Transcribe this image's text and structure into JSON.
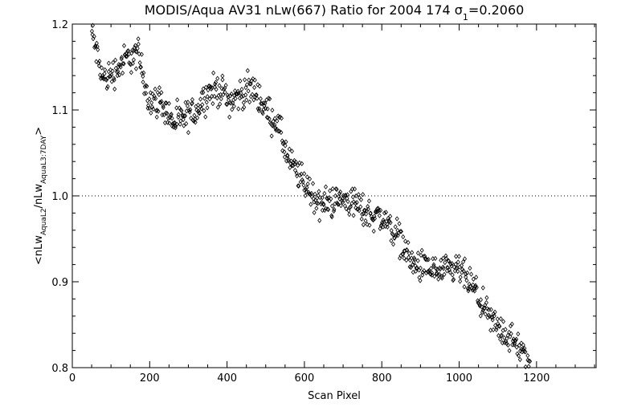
{
  "chart_data": {
    "type": "scatter",
    "title": "MODIS/Aqua AV31 nLw(667) Ratio for 2004 174 σ1=0.2060",
    "title_parts": {
      "main": "MODIS/Aqua AV31 nLw(667) Ratio for 2004 174 σ",
      "sub": "1",
      "tail": "=0.2060"
    },
    "xlabel": "Scan Pixel",
    "ylabel_parts": {
      "p1": "<nLw",
      "s1": "AquaL2",
      "p2": "/nLw",
      "s2": "AquaL3:7DAY",
      "p3": ">"
    },
    "xlim": [
      0,
      1354
    ],
    "ylim": [
      0.8,
      1.2
    ],
    "xticks": [
      0,
      200,
      400,
      600,
      800,
      1000,
      1200
    ],
    "yticks": [
      0.8,
      0.9,
      1.0,
      1.1,
      1.2
    ],
    "xtick_labels": [
      "0",
      "200",
      "400",
      "600",
      "800",
      "1000",
      "1200"
    ],
    "ytick_labels": [
      "0.8",
      "0.9",
      "1.0",
      "1.1",
      "1.2"
    ],
    "reference_line": 1.0,
    "marker": "diamond",
    "x": [
      50,
      80,
      110,
      140,
      170,
      200,
      230,
      260,
      290,
      320,
      350,
      380,
      410,
      440,
      470,
      500,
      530,
      560,
      600,
      640,
      680,
      720,
      760,
      800,
      840,
      880,
      920,
      960,
      1000,
      1040,
      1080,
      1120,
      1160,
      1185
    ],
    "y": [
      1.19,
      1.135,
      1.145,
      1.16,
      1.165,
      1.11,
      1.11,
      1.085,
      1.09,
      1.1,
      1.12,
      1.125,
      1.11,
      1.12,
      1.125,
      1.1,
      1.085,
      1.04,
      1.015,
      0.99,
      0.995,
      0.995,
      0.98,
      0.975,
      0.955,
      0.92,
      0.915,
      0.91,
      0.915,
      0.89,
      0.855,
      0.84,
      0.82,
      0.8
    ]
  }
}
